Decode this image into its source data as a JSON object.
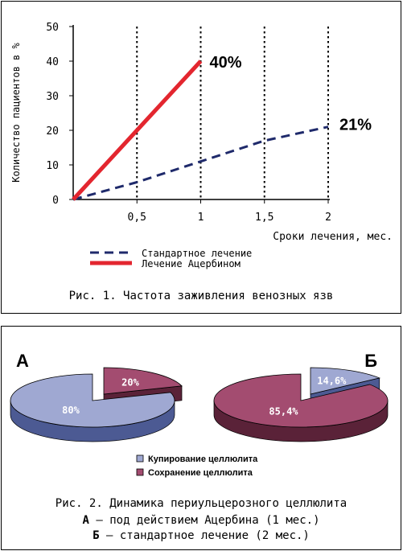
{
  "chart_data": [
    {
      "type": "line",
      "ylabel": "Количество пациентов в %",
      "xlabel": "Сроки лечения, мес.",
      "ylim": [
        0,
        50
      ],
      "xlim": [
        0,
        2
      ],
      "yticks": [
        "0",
        "10",
        "20",
        "30",
        "40",
        "50"
      ],
      "xticks": [
        {
          "value": 0.5,
          "label": "0,5"
        },
        {
          "value": 1,
          "label": "1"
        },
        {
          "value": 1.5,
          "label": "1,5"
        },
        {
          "value": 2,
          "label": "2"
        }
      ],
      "vertical_gridlines_at": [
        0.5,
        1,
        1.5,
        2
      ],
      "series": [
        {
          "name": "Стандартное лечение",
          "style": "dashed",
          "color": "#1f2a6b",
          "x": [
            0,
            0.5,
            1,
            1.5,
            2
          ],
          "y": [
            0,
            5,
            11,
            17,
            21
          ],
          "end_label": "21%"
        },
        {
          "name": "Лечение Ацербином",
          "style": "solid",
          "color": "#e3262f",
          "x": [
            0,
            0.5,
            1
          ],
          "y": [
            0,
            20,
            40
          ],
          "end_label": "40%"
        }
      ],
      "caption": "Рис. 1. Частота заживления венозных язв"
    },
    {
      "type": "pie",
      "pies": [
        {
          "label": "А",
          "slices": [
            {
              "name": "Купирование целлюлита",
              "value": 80,
              "text": "80%",
              "color": "#9fa8d2",
              "side": "#4c5a93"
            },
            {
              "name": "Сохранение целлюлита",
              "value": 20,
              "text": "20%",
              "color": "#a34c70",
              "side": "#5a2238"
            }
          ]
        },
        {
          "label": "Б",
          "slices": [
            {
              "name": "Купирование целлюлита",
              "value": 14.6,
              "text": "14,6%",
              "color": "#9fa8d2",
              "side": "#4c5a93"
            },
            {
              "name": "Сохранение целлюлита",
              "value": 85.4,
              "text": "85,4%",
              "color": "#a34c70",
              "side": "#5a2238"
            }
          ]
        }
      ],
      "legend": [
        "Купирование целлюлита",
        "Сохранение целлюлита"
      ],
      "caption": {
        "line1": "Рис. 2. Динамика периульцерозного целлюлита",
        "line2_bold": "А",
        "line2_rest": " – под действием Ацербина (1 мес.)",
        "line3_bold": "Б",
        "line3_rest": " – стандартное лечение (2 мес.)"
      }
    }
  ]
}
